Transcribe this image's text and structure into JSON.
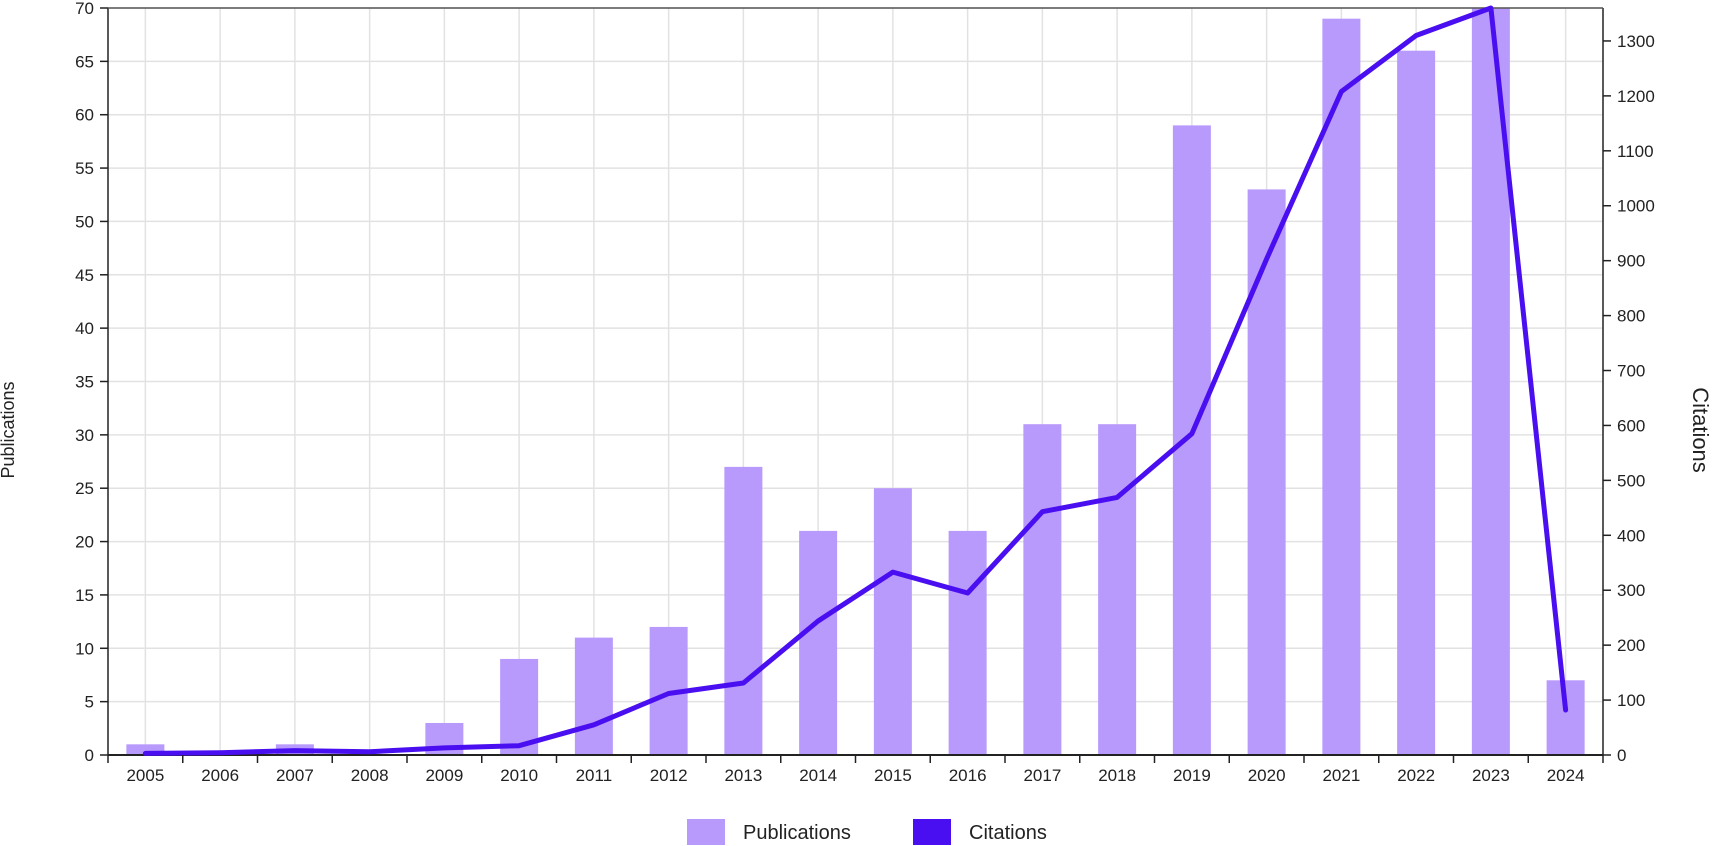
{
  "chart_data": {
    "type": "bar",
    "categories": [
      "2005",
      "2006",
      "2007",
      "2008",
      "2009",
      "2010",
      "2011",
      "2012",
      "2013",
      "2014",
      "2015",
      "2016",
      "2017",
      "2018",
      "2019",
      "2020",
      "2021",
      "2022",
      "2023",
      "2024"
    ],
    "series": [
      {
        "name": "Publications",
        "type": "bar",
        "axis": "left",
        "color": "#b899fc",
        "values": [
          1,
          0,
          1,
          0,
          3,
          9,
          11,
          12,
          27,
          21,
          25,
          21,
          31,
          31,
          59,
          53,
          69,
          66,
          70,
          7
        ]
      },
      {
        "name": "Citations",
        "type": "line",
        "axis": "right",
        "color": "#4a0ff0",
        "values": [
          3,
          4,
          8,
          6,
          13,
          17,
          55,
          112,
          131,
          244,
          333,
          295,
          443,
          469,
          585,
          903,
          1208,
          1310,
          1360,
          82
        ]
      }
    ],
    "ylabel": "Publications",
    "y2label": "Citations",
    "ylim": [
      0,
      70
    ],
    "y2lim": [
      0,
      1360
    ],
    "yticks": [
      0,
      5,
      10,
      15,
      20,
      25,
      30,
      35,
      40,
      45,
      50,
      55,
      60,
      65,
      70
    ],
    "y2ticks": [
      0,
      100,
      200,
      300,
      400,
      500,
      600,
      700,
      800,
      900,
      1000,
      1100,
      1200,
      1300
    ],
    "grid": true,
    "legend": "bottom-center"
  }
}
